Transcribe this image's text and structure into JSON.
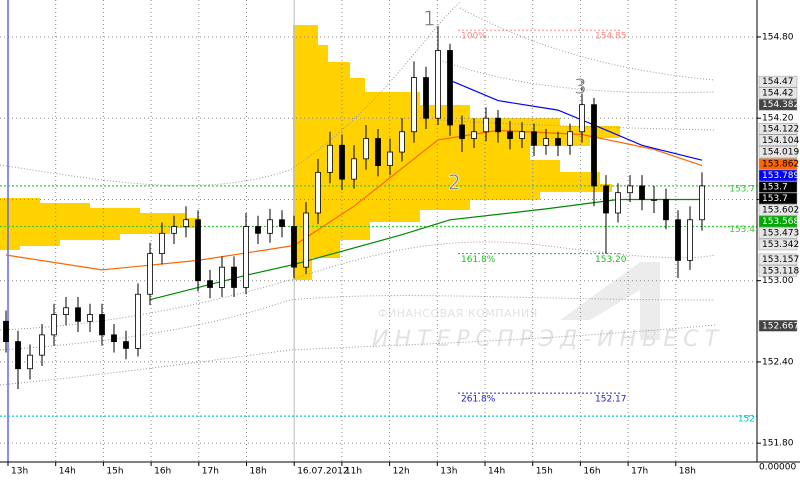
{
  "chart_data": {
    "type": "candlestick",
    "categories": [
      "13h",
      "14h",
      "15h",
      "16h",
      "17h",
      "18h",
      "16.07.2012",
      "11h",
      "12h",
      "13h",
      "14h",
      "15h",
      "16h",
      "17h",
      "18h"
    ],
    "open": [
      152.7,
      152.55,
      152.35,
      152.45,
      152.6,
      152.75,
      152.8,
      152.7,
      152.75,
      152.6,
      152.55,
      152.5,
      152.9,
      153.2,
      153.35,
      153.4,
      153.45,
      153.0,
      152.95,
      153.1,
      152.95,
      153.4,
      153.35,
      153.45,
      153.4,
      153.1,
      153.5,
      153.8,
      154.0,
      153.75,
      153.9,
      154.05,
      153.85,
      153.95,
      154.1,
      154.5,
      154.2,
      154.7,
      154.15,
      154.05,
      154.1,
      154.2,
      154.1,
      154.05,
      154.1,
      154.0,
      154.05,
      154.0,
      154.1,
      154.3,
      153.7,
      153.5,
      153.65,
      153.7,
      153.6,
      153.6,
      153.45,
      153.15,
      153.45
    ],
    "high": [
      152.78,
      152.63,
      152.53,
      152.68,
      152.83,
      152.88,
      152.88,
      152.83,
      152.83,
      152.68,
      152.63,
      152.98,
      153.28,
      153.43,
      153.48,
      153.55,
      153.52,
      153.08,
      153.18,
      153.18,
      153.5,
      153.48,
      153.53,
      153.52,
      153.48,
      153.58,
      153.9,
      154.1,
      154.08,
      154.0,
      154.15,
      154.12,
      154.05,
      154.2,
      154.62,
      154.58,
      154.88,
      154.75,
      154.22,
      154.2,
      154.28,
      154.26,
      154.18,
      154.17,
      154.16,
      154.12,
      154.1,
      154.16,
      154.48,
      154.35,
      153.78,
      153.72,
      153.78,
      153.78,
      153.7,
      153.68,
      153.52,
      153.55,
      153.8
    ],
    "low": [
      152.47,
      152.2,
      152.27,
      152.37,
      152.52,
      152.67,
      152.62,
      152.62,
      152.52,
      152.47,
      152.42,
      152.44,
      152.82,
      153.12,
      153.27,
      153.32,
      152.92,
      152.87,
      152.88,
      152.88,
      152.9,
      153.27,
      153.28,
      153.32,
      153.02,
      153.05,
      153.42,
      153.72,
      153.67,
      153.68,
      153.82,
      153.77,
      153.78,
      153.88,
      154.02,
      154.12,
      154.15,
      154.07,
      153.95,
      153.98,
      154.03,
      154.02,
      153.97,
      153.98,
      153.92,
      153.93,
      153.92,
      153.93,
      154.02,
      153.55,
      153.2,
      153.43,
      153.58,
      153.52,
      153.5,
      153.38,
      153.02,
      153.08,
      153.37
    ],
    "close": [
      152.55,
      152.35,
      152.45,
      152.6,
      152.75,
      152.8,
      152.7,
      152.75,
      152.6,
      152.55,
      152.5,
      152.9,
      153.2,
      153.35,
      153.4,
      153.45,
      153.0,
      152.95,
      153.1,
      152.95,
      153.4,
      153.35,
      153.45,
      153.4,
      153.1,
      153.5,
      153.8,
      154.0,
      153.75,
      153.9,
      154.05,
      153.85,
      153.95,
      154.1,
      154.5,
      154.2,
      154.7,
      154.15,
      154.05,
      154.1,
      154.2,
      154.1,
      154.05,
      154.1,
      154.0,
      154.05,
      154.0,
      154.1,
      154.3,
      153.7,
      153.5,
      153.65,
      153.7,
      153.6,
      153.6,
      153.45,
      153.15,
      153.45,
      153.7
    ],
    "lines": [
      {
        "color": "#ff6600",
        "x": [
          0,
          8,
          16,
          24,
          29,
          36,
          41,
          48,
          54,
          58
        ],
        "values": [
          153.19,
          153.08,
          153.15,
          153.26,
          153.55,
          154.04,
          154.11,
          154.08,
          153.97,
          153.85
        ]
      },
      {
        "color": "#008800",
        "x": [
          12,
          20,
          24,
          33,
          37,
          45,
          51,
          58
        ],
        "values": [
          152.86,
          153.04,
          153.12,
          153.34,
          153.45,
          153.53,
          153.6,
          153.6
        ]
      },
      {
        "color": "#0000ff",
        "x": [
          37,
          41,
          46,
          49,
          53,
          58
        ],
        "values": [
          154.48,
          154.33,
          154.26,
          154.15,
          154.0,
          153.89
        ]
      }
    ],
    "ylim": [
      151.661,
      155.073
    ],
    "yticks": [
      {
        "value": 154.8,
        "label": "154.80"
      },
      {
        "value": 154.2,
        "label": "154.20"
      },
      {
        "value": 153.6,
        "label": "153.60"
      },
      {
        "value": 153.0,
        "label": "153.00"
      },
      {
        "value": 152.4,
        "label": "152.40"
      },
      {
        "value": 151.8,
        "label": "151.80"
      }
    ],
    "bottom_label": "0.00000",
    "price_tags": [
      {
        "value": 154.47,
        "color": "#e6e6e6"
      },
      {
        "value": 154.42,
        "color": "#e6e6e6"
      },
      {
        "value": 154.382,
        "color": "#444444"
      },
      {
        "value": 154.122,
        "color": "#e6e6e6"
      },
      {
        "value": 154.104,
        "color": "#e6e6e6"
      },
      {
        "value": 154.019,
        "color": "#e6e6e6"
      },
      {
        "value": 153.862,
        "color": "#ff6600"
      },
      {
        "value": 153.789,
        "color": "#0000ff"
      },
      {
        "value": 153.7,
        "color": "#000000"
      },
      {
        "value": 153.7,
        "color": "#000000"
      },
      {
        "value": 153.602,
        "color": "#e6e6e6"
      },
      {
        "value": 153.568,
        "color": "#00aa00"
      },
      {
        "value": 153.473,
        "color": "#e6e6e6"
      },
      {
        "value": 153.342,
        "color": "#e6e6e6"
      },
      {
        "value": 153.157,
        "color": "#e6e6e6"
      },
      {
        "value": 153.118,
        "color": "#e6e6e6"
      },
      {
        "value": 152.667,
        "color": "#444444"
      }
    ],
    "levels": [
      {
        "value": 153.7,
        "color": "#33cc33"
      },
      {
        "value": 153.4,
        "color": "#33cc33"
      },
      {
        "value": 152,
        "color": "#00cccc"
      }
    ],
    "fib_levels": [
      {
        "ratio": "100%",
        "value": 154.85,
        "label": "154.85",
        "color": "#ff8888"
      },
      {
        "ratio": "161.8%",
        "value": 153.2,
        "label": "153.20",
        "color": "#22bb22"
      },
      {
        "ratio": "261.8%",
        "value": 152.17,
        "label": "152.17",
        "color": "#2222cc"
      }
    ],
    "annotations": [
      "1",
      "2",
      "3"
    ],
    "watermark": [
      "ФИНАНСОВАЯ КОМПАНИЯ",
      "ИНТЕРСПРЭД-ИНВЕСТ"
    ]
  }
}
